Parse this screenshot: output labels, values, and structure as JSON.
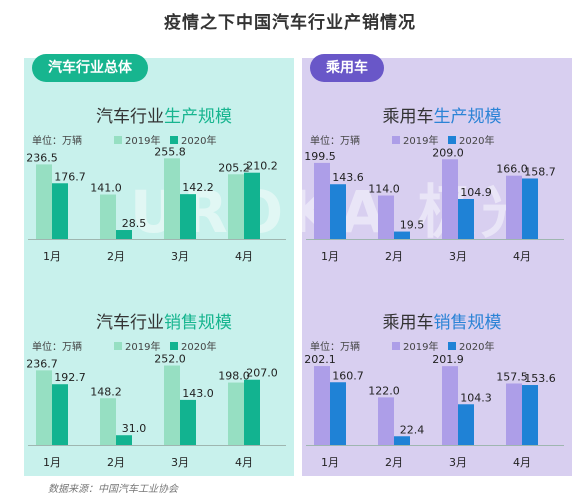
{
  "title": "疫情之下中国汽车行业产销情况",
  "source": "数据来源：中国汽车工业协会",
  "watermark": "UROKA 极光",
  "panels": [
    {
      "label": "汽车行业总体"
    },
    {
      "label": "乘用车"
    }
  ],
  "colors": {
    "total_light": "#96dfc2",
    "total_dark": "#12b390",
    "passenger_light": "#ad9ee8",
    "passenger_dark": "#1f82d6",
    "title_dark": "#333333",
    "accent_green": "#17b58f",
    "accent_blue": "#2b83d6"
  },
  "chart_data": [
    {
      "type": "bar",
      "title_prefix": "汽车行业",
      "title_suffix": "生产规模",
      "unit": "单位：万辆",
      "categories": [
        "1月",
        "2月",
        "3月",
        "4月"
      ],
      "series": [
        {
          "name": "2019年",
          "values": [
            236.5,
            141.0,
            255.8,
            205.2
          ]
        },
        {
          "name": "2020年",
          "values": [
            176.7,
            28.5,
            142.2,
            210.2
          ]
        }
      ],
      "ylim": [
        0,
        260
      ]
    },
    {
      "type": "bar",
      "title_prefix": "汽车行业",
      "title_suffix": "销售规模",
      "unit": "单位：万辆",
      "categories": [
        "1月",
        "2月",
        "3月",
        "4月"
      ],
      "series": [
        {
          "name": "2019年",
          "values": [
            236.7,
            148.2,
            252.0,
            198.0
          ]
        },
        {
          "name": "2020年",
          "values": [
            192.7,
            31.0,
            143.0,
            207.0
          ]
        }
      ],
      "ylim": [
        0,
        260
      ]
    },
    {
      "type": "bar",
      "title_prefix": "乘用车",
      "title_suffix": "生产规模",
      "unit": "单位：万辆",
      "categories": [
        "1月",
        "2月",
        "3月",
        "4月"
      ],
      "series": [
        {
          "name": "2019年",
          "values": [
            199.5,
            114.0,
            209.0,
            166.0
          ]
        },
        {
          "name": "2020年",
          "values": [
            143.6,
            19.5,
            104.9,
            158.7
          ]
        }
      ],
      "ylim": [
        0,
        215
      ]
    },
    {
      "type": "bar",
      "title_prefix": "乘用车",
      "title_suffix": "销售规模",
      "unit": "单位：万辆",
      "categories": [
        "1月",
        "2月",
        "3月",
        "4月"
      ],
      "series": [
        {
          "name": "2019年",
          "values": [
            202.1,
            122.0,
            201.9,
            157.5
          ]
        },
        {
          "name": "2020年",
          "values": [
            160.7,
            22.4,
            104.3,
            153.6
          ]
        }
      ],
      "ylim": [
        0,
        210
      ]
    }
  ]
}
